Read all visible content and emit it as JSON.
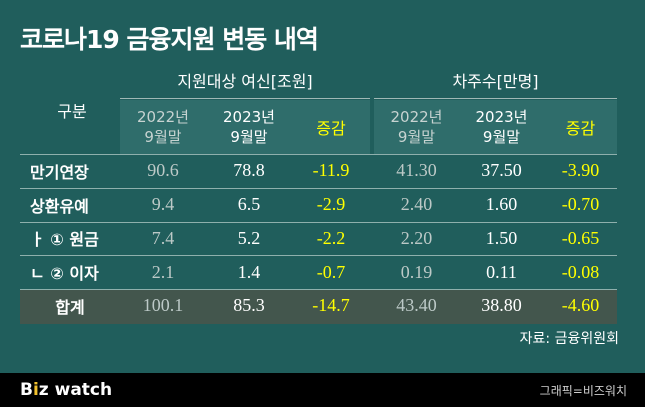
{
  "title": "코로나19 금융지원 변동 내역",
  "group_headers": {
    "row_label": "구분",
    "left": "지원대상 여신[조원]",
    "right": "차주수[만명]"
  },
  "subheaders": {
    "y2022": [
      "2022년",
      "9월말"
    ],
    "y2023": [
      "2023년",
      "9월말"
    ],
    "change": "증감"
  },
  "chart_data": {
    "type": "table",
    "title": "코로나19 금융지원 변동 내역",
    "columns": [
      "구분",
      "지원대상 여신[조원] 2022년 9월말",
      "지원대상 여신[조원] 2023년 9월말",
      "지원대상 여신[조원] 증감",
      "차주수[만명] 2022년 9월말",
      "차주수[만명] 2023년 9월말",
      "차주수[만명] 증감"
    ],
    "rows": [
      {
        "label": "만기연장",
        "values": [
          "90.6",
          "78.8",
          "-11.9",
          "41.30",
          "37.50",
          "-3.90"
        ]
      },
      {
        "label": "상환유예",
        "values": [
          "9.4",
          "6.5",
          "-2.9",
          "2.40",
          "1.60",
          "-0.70"
        ]
      },
      {
        "label": "ㅏ ① 원금",
        "values": [
          "7.4",
          "5.2",
          "-2.2",
          "2.20",
          "1.50",
          "-0.65"
        ]
      },
      {
        "label": "ㄴ ② 이자",
        "values": [
          "2.1",
          "1.4",
          "-0.7",
          "0.19",
          "0.11",
          "-0.08"
        ]
      },
      {
        "label": "합계",
        "values": [
          "100.1",
          "85.3",
          "-14.7",
          "43.40",
          "38.80",
          "-4.60"
        ]
      }
    ]
  },
  "source": "자료: 금융위원회",
  "footer": {
    "logo_prefix": "B",
    "logo_z": "z",
    "logo_suffix": " watch",
    "logo_mid": "i",
    "credit": "그래픽=비즈워치"
  },
  "colors": {
    "background": "#205e5c",
    "highlight": "#ffff00",
    "sum_row": "#43564d",
    "footer": "#000000"
  }
}
